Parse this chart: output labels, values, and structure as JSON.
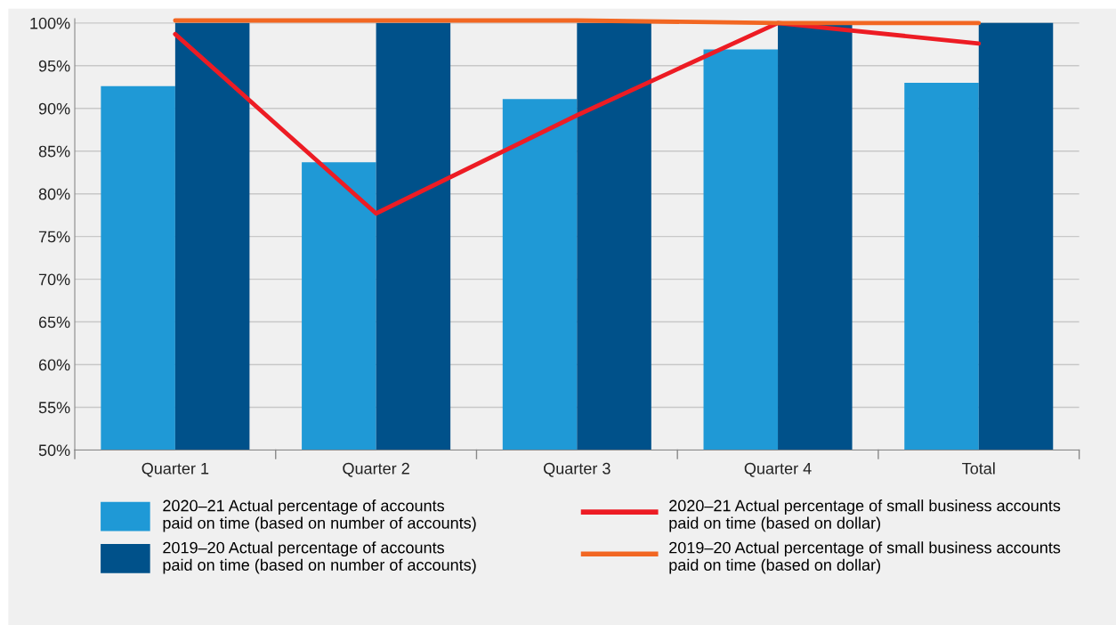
{
  "chart_data": {
    "type": "bar",
    "categories": [
      "Quarter 1",
      "Quarter 2",
      "Quarter 3",
      "Quarter 4",
      "Total"
    ],
    "series": [
      {
        "name": "2020–21 Actual percentage of accounts\npaid on time (based on number of accounts)",
        "color": "#1f99d6",
        "values": [
          92.6,
          83.7,
          91.1,
          96.9,
          93.0
        ]
      },
      {
        "name": "2019–20 Actual percentage of accounts\npaid on time (based on number of accounts)",
        "color": "#00518a",
        "values": [
          100,
          100,
          100,
          100,
          100
        ]
      },
      {
        "name": "2020–21 Actual percentage of small business accounts\npaid on time (based on dollar)",
        "type": "line",
        "color": "#ed1c24",
        "values": [
          98.7,
          77.7,
          89.2,
          100,
          97.6
        ]
      },
      {
        "name": "2019–20 Actual percentage of small business accounts\npaid on time (based on dollar)",
        "type": "line",
        "color": "#f26722",
        "values": [
          100.3,
          100.3,
          100.3,
          100,
          100
        ]
      }
    ],
    "ylim": [
      50,
      100.5
    ],
    "yticks": [
      {
        "value": 50,
        "label": "50%"
      },
      {
        "value": 55,
        "label": "55%"
      },
      {
        "value": 60,
        "label": "60%"
      },
      {
        "value": 65,
        "label": "65%"
      },
      {
        "value": 70,
        "label": "70%"
      },
      {
        "value": 75,
        "label": "75%"
      },
      {
        "value": 80,
        "label": "80%"
      },
      {
        "value": 85,
        "label": "85%"
      },
      {
        "value": 90,
        "label": "90%"
      },
      {
        "value": 95,
        "label": "95%"
      },
      {
        "value": 100,
        "label": "100%"
      }
    ],
    "grid": "y",
    "legend": "bottom",
    "marker": "none",
    "line_style": "solid"
  }
}
